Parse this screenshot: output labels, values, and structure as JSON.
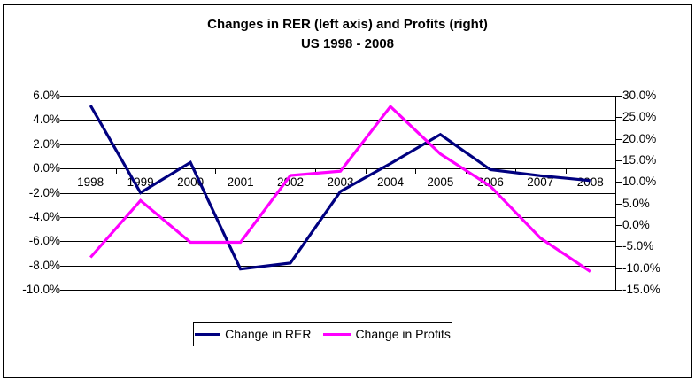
{
  "chart": {
    "title_line1": "Changes in RER (left axis) and Profits (right)",
    "title_line2": "US 1998 - 2008",
    "legend": {
      "items": [
        {
          "label": "Change in RER",
          "color": "#000080"
        },
        {
          "label": "Change in Profits",
          "color": "#FF00FF"
        }
      ]
    }
  },
  "chart_data": {
    "type": "line",
    "title": "Changes in RER (left axis) and Profits (right)",
    "subtitle": "US 1998 - 2008",
    "categories": [
      "1998",
      "1999",
      "2000",
      "2001",
      "2002",
      "2003",
      "2004",
      "2005",
      "2006",
      "2007",
      "2008"
    ],
    "series": [
      {
        "name": "Change in RER",
        "axis": "left",
        "color": "#000080",
        "values": [
          5.2,
          -2.0,
          0.5,
          -8.3,
          -7.8,
          -1.9,
          0.4,
          2.8,
          -0.1,
          -0.6,
          -1.0
        ]
      },
      {
        "name": "Change in Profits",
        "axis": "right",
        "color": "#FF00FF",
        "values": [
          -7.5,
          5.7,
          -4.0,
          -4.0,
          11.5,
          12.5,
          27.5,
          16.5,
          9.0,
          -3.0,
          -10.8
        ]
      }
    ],
    "left_axis": {
      "min": -10,
      "max": 6,
      "step": 2,
      "tick_labels": [
        "6.0%",
        "4.0%",
        "2.0%",
        "0.0%",
        "-2.0%",
        "-4.0%",
        "-6.0%",
        "-8.0%",
        "-10.0%"
      ]
    },
    "right_axis": {
      "min": -15,
      "max": 30,
      "step": 5,
      "tick_labels": [
        "30.0%",
        "25.0%",
        "20.0%",
        "15.0%",
        "10.0%",
        "5.0%",
        "0.0%",
        "-5.0%",
        "-10.0%",
        "-15.0%"
      ]
    },
    "x_axis_cross_value": 0,
    "grid": true,
    "legend_position": "bottom"
  }
}
